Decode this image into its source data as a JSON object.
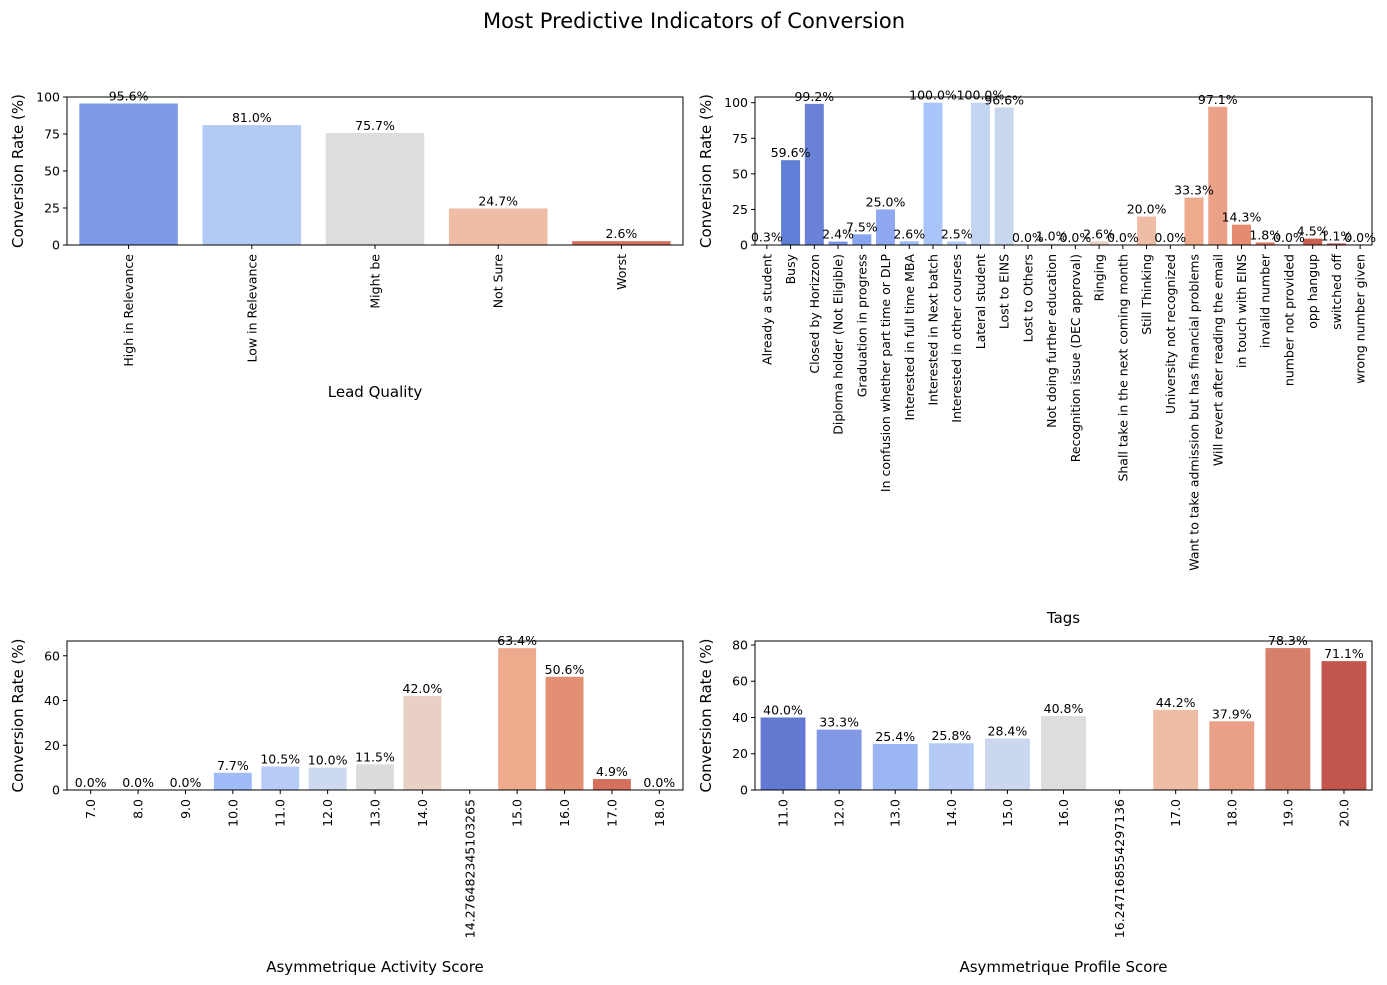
{
  "title": "Most Predictive Indicators of Conversion",
  "chart_data": [
    {
      "type": "bar",
      "xlabel": "Lead Quality",
      "ylabel": "Conversion Rate (%)",
      "ylim": [
        0,
        100
      ],
      "yticks": [
        "0",
        "25",
        "50",
        "75",
        "100"
      ],
      "categories": [
        "High in Relevance",
        "Low in Relevance",
        "Might be",
        "Not Sure",
        "Worst"
      ],
      "values": [
        95.6,
        81.0,
        75.7,
        24.7,
        2.6
      ],
      "labels": [
        "95.6%",
        "81.0%",
        "75.7%",
        "24.7%",
        "2.6%"
      ],
      "colors": [
        "#7f9ae5",
        "#b3caf5",
        "#dddddd",
        "#efbca5",
        "#d57060"
      ],
      "grid": false
    },
    {
      "type": "bar",
      "xlabel": "Tags",
      "ylabel": "Conversion Rate (%)",
      "ylim": [
        0,
        104
      ],
      "yticks": [
        "0",
        "25",
        "50",
        "75",
        "100"
      ],
      "categories": [
        "Already a student",
        "Busy",
        "Closed by Horizzon",
        "Diploma holder (Not Eligible)",
        "Graduation in progress",
        "In confusion whether part time or DLP",
        "Interested  in full time MBA",
        "Interested in Next batch",
        "Interested in other courses",
        "Lateral student",
        "Lost to EINS",
        "Lost to Others",
        "Not doing further education",
        "Recognition issue (DEC approval)",
        "Ringing",
        "Shall take in the next coming month",
        "Still Thinking",
        "University not recognized",
        "Want to take admission but has financial problems",
        "Will revert after reading the email",
        "in touch with EINS",
        "invalid number",
        "number not provided",
        "opp hangup",
        "switched off",
        "wrong number given"
      ],
      "values": [
        0.3,
        59.6,
        99.2,
        2.4,
        7.5,
        25.0,
        2.6,
        100.0,
        2.5,
        100.0,
        96.6,
        0.0,
        1.0,
        0.0,
        2.6,
        0.0,
        20.0,
        0.0,
        33.3,
        97.1,
        14.3,
        1.8,
        0.0,
        4.5,
        1.1,
        0.0
      ],
      "labels": [
        "0.3%",
        "59.6%",
        "99.2%",
        "2.4%",
        "7.5%",
        "25.0%",
        "2.6%",
        "100.0%",
        "2.5%",
        "100.0%",
        "96.6%",
        "0.0%",
        "1.0%",
        "0.0%",
        "2.6%",
        "0.0%",
        "20.0%",
        "0.0%",
        "33.3%",
        "97.1%",
        "14.3%",
        "1.8%",
        "0.0%",
        "4.5%",
        "1.1%",
        "0.0%"
      ],
      "colors": [
        "#3b4cc0",
        "#5f7fd6",
        "#6981d6",
        "#7a95e6",
        "#8aa5ef",
        "#8ea9f2",
        "#a0bcf8",
        "#a9c4f8",
        "#b6cdf6",
        "#c4d5f3",
        "#c9d7ee",
        "#d3d8e3",
        "#dcdcdc",
        "#e2d7d1",
        "#e6d1c6",
        "#ebc7b5",
        "#efbca5",
        "#f0b79e",
        "#edaa8c",
        "#eba088",
        "#e48b70",
        "#df7a62",
        "#d66e5a",
        "#cb5e50",
        "#c35148",
        "#b40426"
      ],
      "grid": false
    },
    {
      "type": "bar",
      "xlabel": "Asymmetrique Activity Score",
      "ylabel": "Conversion Rate (%)",
      "ylim": [
        0,
        66.6
      ],
      "yticks": [
        "0",
        "20",
        "40",
        "60"
      ],
      "categories": [
        "7.0",
        "8.0",
        "9.0",
        "10.0",
        "11.0",
        "12.0",
        "13.0",
        "14.0",
        "14.276482345103265",
        "15.0",
        "16.0",
        "17.0",
        "18.0"
      ],
      "values": [
        0.0,
        0.0,
        0.0,
        7.7,
        10.5,
        10.0,
        11.5,
        42.0,
        null,
        63.4,
        50.6,
        4.9,
        0.0
      ],
      "labels": [
        "0.0%",
        "0.0%",
        "0.0%",
        "7.7%",
        "10.5%",
        "10.0%",
        "11.5%",
        "42.0%",
        "",
        "63.4%",
        "50.6%",
        "4.9%",
        "0.0%"
      ],
      "colors": [
        "#5a72d8",
        "#6e89e8",
        "#86a3f3",
        "#9fbcf9",
        "#b7cdf8",
        "#ccd9ee",
        "#dddcdc",
        "#e8d1c4",
        "#efc0aa",
        "#eeaa8d",
        "#e28f73",
        "#d4705c",
        "#c25044"
      ],
      "grid": false
    },
    {
      "type": "bar",
      "xlabel": "Asymmetrique Profile Score",
      "ylabel": "Conversion Rate (%)",
      "ylim": [
        0,
        82.2
      ],
      "yticks": [
        "0",
        "20",
        "40",
        "60",
        "80"
      ],
      "categories": [
        "11.0",
        "12.0",
        "13.0",
        "14.0",
        "15.0",
        "16.0",
        "16.24716855429713​6",
        "17.0",
        "18.0",
        "19.0",
        "20.0"
      ],
      "values": [
        40.0,
        33.3,
        25.4,
        25.8,
        28.4,
        40.8,
        null,
        44.2,
        37.9,
        78.3,
        71.1
      ],
      "labels": [
        "40.0%",
        "33.3%",
        "25.4%",
        "25.8%",
        "28.4%",
        "40.8%",
        "",
        "44.2%",
        "37.9%",
        "78.3%",
        "71.1%"
      ],
      "colors": [
        "#6378d0",
        "#8199e5",
        "#9cb6f4",
        "#b5cbf6",
        "#cbd7ee",
        "#dddddd",
        "#e8cfc2",
        "#efbca4",
        "#e9a086",
        "#d67f6a",
        "#c3564c"
      ],
      "grid": false
    }
  ]
}
